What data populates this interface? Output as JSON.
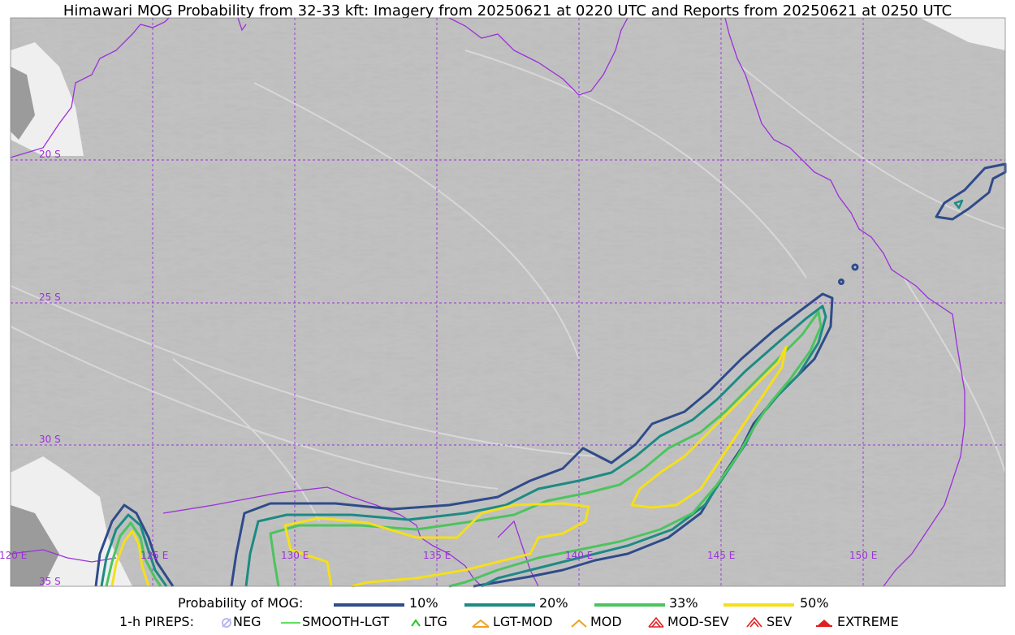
{
  "title": "Himawari MOG Probability from 32-33 kft: Imagery from 20250621 at 0220 UTC and Reports from 20250621 at 0250 UTC",
  "map": {
    "lat_labels": [
      "20 S",
      "25 S",
      "30 S",
      "35 S"
    ],
    "lon_labels": [
      "120 E",
      "125 E",
      "130 E",
      "135 E",
      "140 E",
      "145 E",
      "150 E"
    ],
    "gridline_color": "#9b30d9",
    "coastline_color": "#9b30d9"
  },
  "legend": {
    "probability_title": "Probability of MOG:",
    "levels": [
      {
        "label": "10%",
        "color": "#2f4b8a"
      },
      {
        "label": "20%",
        "color": "#1d8a84"
      },
      {
        "label": "33%",
        "color": "#4cc45e"
      },
      {
        "label": "50%",
        "color": "#f5df1a"
      }
    ],
    "pirep_title": "1-h PIREPS:",
    "pireps": [
      {
        "label": "NEG",
        "icon": "neg-icon",
        "color": "#b9b9f0"
      },
      {
        "label": "SMOOTH-LGT",
        "icon": "smooth-lgt-line-icon",
        "color": "#2bd62b"
      },
      {
        "label": "LTG",
        "icon": "ltg-caret-icon",
        "color": "#22c822"
      },
      {
        "label": "LGT-MOD",
        "icon": "lgt-mod-icon",
        "color": "#f0a020"
      },
      {
        "label": "MOD",
        "icon": "mod-caret-icon",
        "color": "#f0a020"
      },
      {
        "label": "MOD-SEV",
        "icon": "mod-sev-icon",
        "color": "#e02020"
      },
      {
        "label": "SEV",
        "icon": "sev-caret-icon",
        "color": "#e02020"
      },
      {
        "label": "EXTREME",
        "icon": "extreme-icon",
        "color": "#e02020"
      }
    ]
  }
}
